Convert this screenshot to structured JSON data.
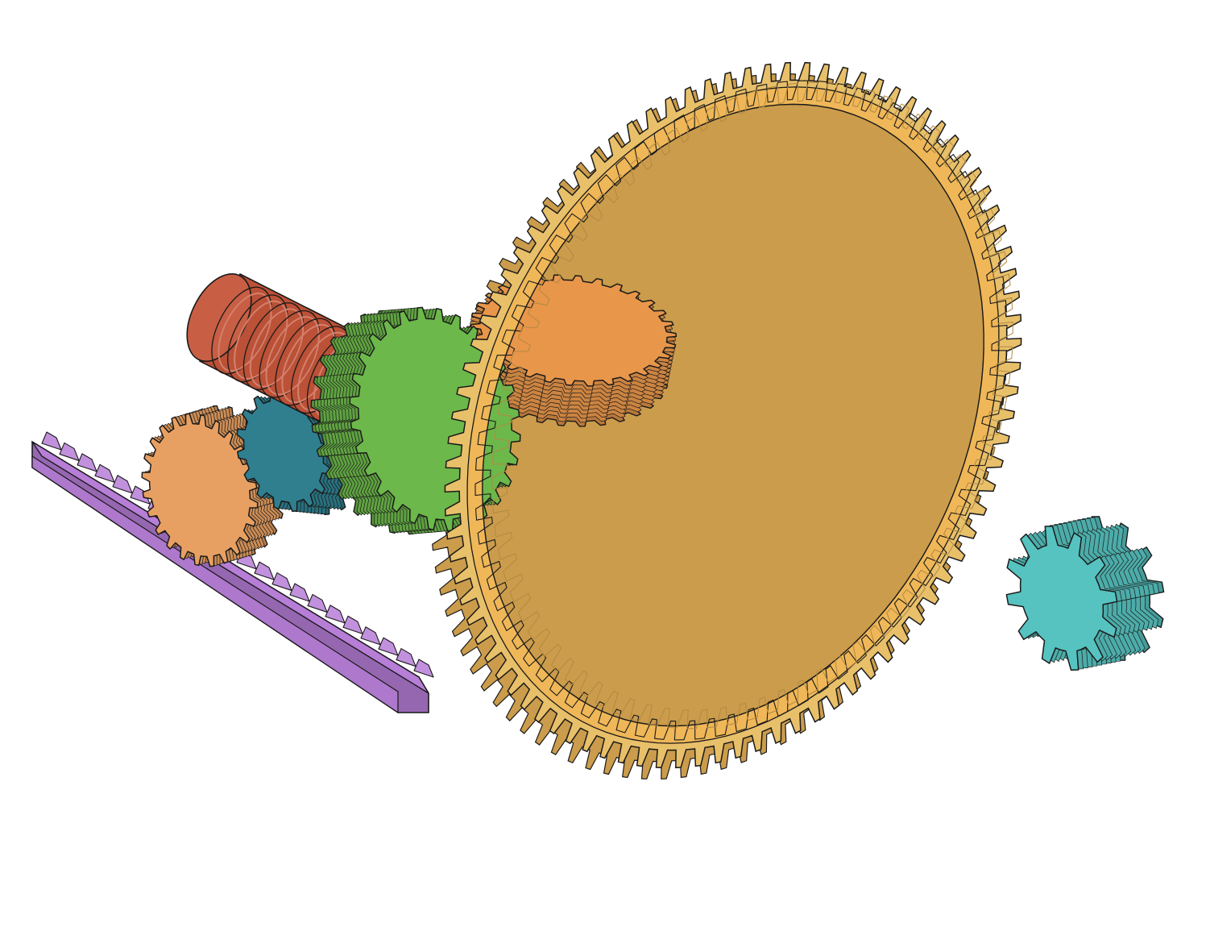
{
  "scene": {
    "background": "#ffffff",
    "outline": "#1a1a1a"
  },
  "parts": [
    {
      "name": "gear-rack",
      "color": "#b77ed8",
      "teeth": 22
    },
    {
      "name": "spur-gear-small",
      "color": "#e8a062",
      "teeth": 24
    },
    {
      "name": "helical-gear-teal",
      "color": "#2f7f8f",
      "teeth": 16
    },
    {
      "name": "worm-gear",
      "color": "#c5553a",
      "turns": 9
    },
    {
      "name": "herringbone-gear",
      "color": "#6cb84a",
      "teeth": 28
    },
    {
      "name": "helical-gear-orange",
      "color": "#e8964a",
      "teeth": 30
    },
    {
      "name": "ring-gear",
      "color": "#efb758",
      "face_color": "#e8c06a",
      "teeth_outer": 90,
      "teeth_inner": 80
    },
    {
      "name": "spur-pinion-cyan",
      "color": "#56c3c0",
      "teeth": 12
    }
  ]
}
